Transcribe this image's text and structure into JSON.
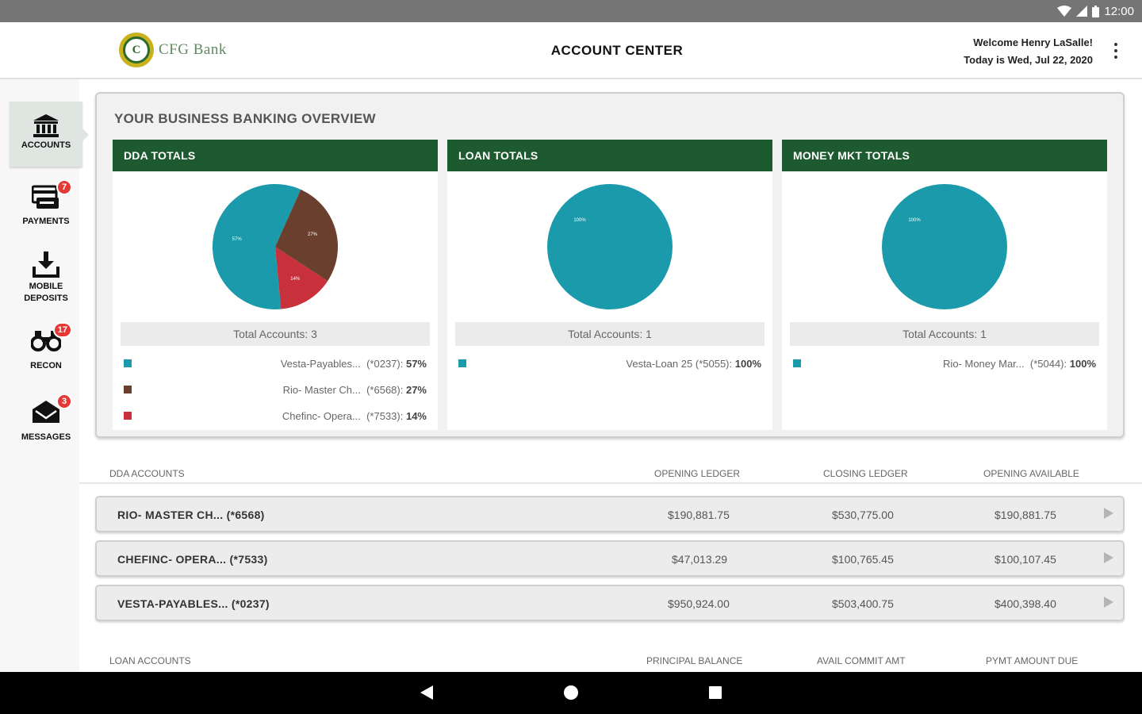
{
  "status_bar": {
    "time": "12:00"
  },
  "header": {
    "logo_mark": "C",
    "logo_text": "CFG Bank",
    "title": "ACCOUNT CENTER",
    "welcome": "Welcome Henry LaSalle!",
    "date": "Today is Wed, Jul 22, 2020"
  },
  "sidebar": {
    "items": [
      {
        "label": "ACCOUNTS",
        "icon": "bank-icon",
        "badge": ""
      },
      {
        "label": "PAYMENTS",
        "icon": "payments-icon",
        "badge": "7"
      },
      {
        "label": "MOBILE DEPOSITS",
        "label_line1": "MOBILE",
        "label_line2": "DEPOSITS",
        "icon": "download-icon",
        "badge": ""
      },
      {
        "label": "RECON",
        "icon": "binoculars-icon",
        "badge": "17"
      },
      {
        "label": "MESSAGES",
        "icon": "envelope-icon",
        "badge": "3"
      }
    ]
  },
  "overview": {
    "title": "YOUR BUSINESS BANKING OVERVIEW",
    "panels": [
      {
        "title": "DDA TOTALS",
        "total": "Total Accounts: 3",
        "legend": [
          {
            "name": "Vesta-Payables...",
            "acct": "(*0237):",
            "pct": "57%",
            "color": "#1a9aaa"
          },
          {
            "name": "Rio- Master Ch...",
            "acct": "(*6568):",
            "pct": "27%",
            "color": "#6b3f2e"
          },
          {
            "name": "Chefinc- Opera...",
            "acct": "(*7533):",
            "pct": "14%",
            "color": "#c8313b"
          }
        ],
        "slice_labels": [
          "57%",
          "27%",
          "14%"
        ]
      },
      {
        "title": "LOAN TOTALS",
        "total": "Total Accounts: 1",
        "legend": [
          {
            "name": "Vesta-Loan 25",
            "acct": "(*5055):",
            "pct": "100%",
            "color": "#1a9aaa"
          }
        ],
        "slice_labels": [
          "100%"
        ]
      },
      {
        "title": "MONEY MKT TOTALS",
        "total": "Total Accounts: 1",
        "legend": [
          {
            "name": "Rio- Money Mar...",
            "acct": "(*5044):",
            "pct": "100%",
            "color": "#1a9aaa"
          }
        ],
        "slice_labels": [
          "100%"
        ]
      }
    ]
  },
  "chart_data": [
    {
      "type": "pie",
      "title": "DDA TOTALS",
      "categories": [
        "Vesta-Payables... (*0237)",
        "Rio- Master Ch... (*6568)",
        "Chefinc- Opera... (*7533)"
      ],
      "values": [
        57,
        27,
        14
      ],
      "colors": [
        "#1a9aaa",
        "#6b3f2e",
        "#c8313b"
      ]
    },
    {
      "type": "pie",
      "title": "LOAN TOTALS",
      "categories": [
        "Vesta-Loan 25 (*5055)"
      ],
      "values": [
        100
      ],
      "colors": [
        "#1a9aaa"
      ]
    },
    {
      "type": "pie",
      "title": "MONEY MKT TOTALS",
      "categories": [
        "Rio- Money Mar... (*5044)"
      ],
      "values": [
        100
      ],
      "colors": [
        "#1a9aaa"
      ]
    }
  ],
  "dda_table": {
    "headers": [
      "DDA ACCOUNTS",
      "OPENING LEDGER",
      "CLOSING LEDGER",
      "OPENING AVAILABLE"
    ],
    "rows": [
      {
        "name": "RIO- MASTER CH...  (*6568)",
        "opening_ledger": "$190,881.75",
        "closing_ledger": "$530,775.00",
        "opening_available": "$190,881.75"
      },
      {
        "name": "CHEFINC- OPERA...  (*7533)",
        "opening_ledger": "$47,013.29",
        "closing_ledger": "$100,765.45",
        "opening_available": "$100,107.45"
      },
      {
        "name": "VESTA-PAYABLES...  (*0237)",
        "opening_ledger": "$950,924.00",
        "closing_ledger": "$503,400.75",
        "opening_available": "$400,398.40"
      }
    ]
  },
  "loan_table": {
    "headers": [
      "LOAN ACCOUNTS",
      "PRINCIPAL BALANCE",
      "AVAIL COMMIT AMT",
      "PYMT AMOUNT DUE"
    ]
  },
  "colors": {
    "brand_green": "#1e5a2f",
    "teal": "#1a9aaa",
    "brown": "#6b3f2e",
    "red": "#c8313b",
    "badge_red": "#e53935"
  }
}
